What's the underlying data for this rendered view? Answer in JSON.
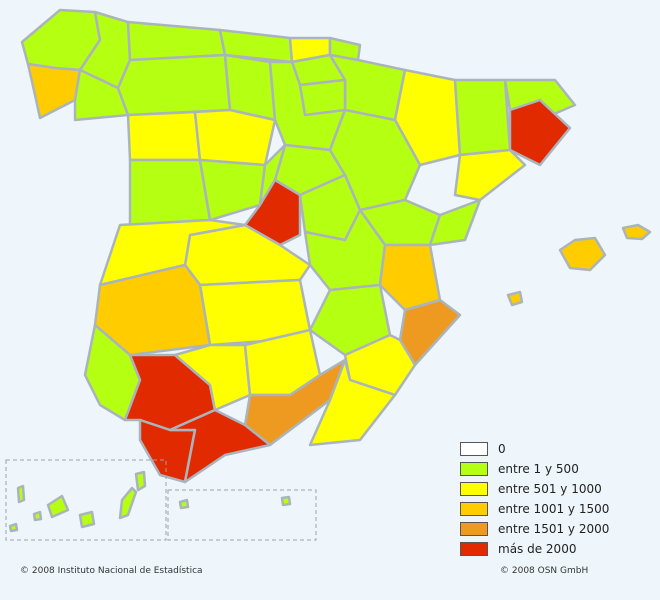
{
  "legend": {
    "items": [
      {
        "label": "0",
        "color": "#ffffff"
      },
      {
        "label": "entre 1 y 500",
        "color": "#b5ff13"
      },
      {
        "label": "entre 501 y 1000",
        "color": "#ffff00"
      },
      {
        "label": "entre 1001 y 1500",
        "color": "#ffcc00"
      },
      {
        "label": "entre 1501 y 2000",
        "color": "#ee9a20"
      },
      {
        "label": "más de 2000",
        "color": "#e22a00"
      }
    ]
  },
  "credits": {
    "left": "© 2008 Instituto Nacional de Estadística",
    "right": "© 2008 OSN GmbH"
  }
}
